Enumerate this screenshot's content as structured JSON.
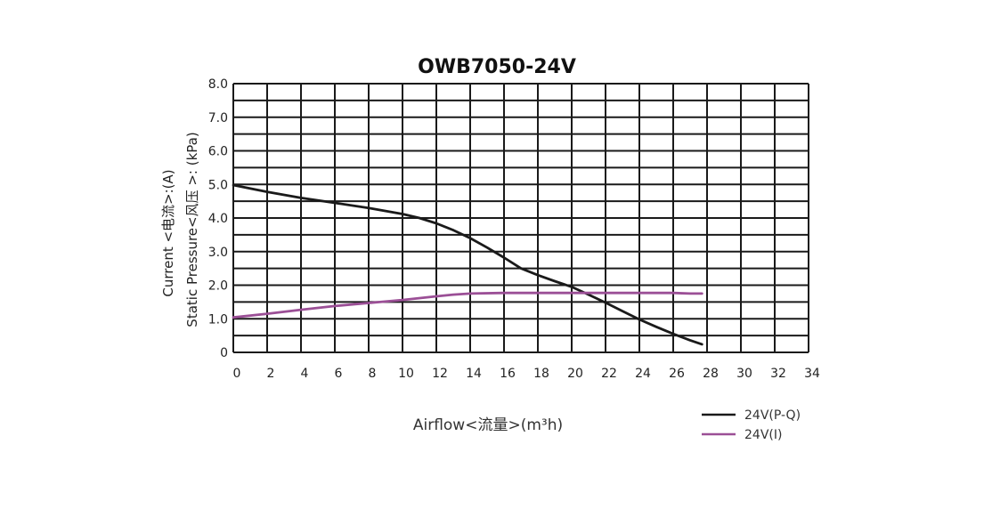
{
  "chart_data": {
    "type": "line",
    "title": "OWB7050-24V",
    "xlabel": "Airflow<流量>(m³h)",
    "ylabel_lines": [
      "Current  <电流>:(A)",
      "Static Pressure<风压 >: (kPa)"
    ],
    "xlim": [
      0,
      34
    ],
    "ylim": [
      0,
      8
    ],
    "x_ticks": [
      {
        "v": 0,
        "label": "0"
      },
      {
        "v": 2,
        "label": "2"
      },
      {
        "v": 4,
        "label": "4"
      },
      {
        "v": 6,
        "label": "6"
      },
      {
        "v": 8,
        "label": "8"
      },
      {
        "v": 10,
        "label": "10"
      },
      {
        "v": 12,
        "label": "12"
      },
      {
        "v": 14,
        "label": "14"
      },
      {
        "v": 16,
        "label": "16"
      },
      {
        "v": 18,
        "label": "18"
      },
      {
        "v": 20,
        "label": "20"
      },
      {
        "v": 22,
        "label": "22"
      },
      {
        "v": 24,
        "label": "24"
      },
      {
        "v": 26,
        "label": "26"
      },
      {
        "v": 28,
        "label": "28"
      },
      {
        "v": 30,
        "label": "30"
      },
      {
        "v": 32,
        "label": "32"
      },
      {
        "v": 34,
        "label": "34"
      }
    ],
    "y_ticks": [
      {
        "v": 0,
        "label": "0"
      },
      {
        "v": 1,
        "label": "1.0"
      },
      {
        "v": 2,
        "label": "2.0"
      },
      {
        "v": 3,
        "label": "3.0"
      },
      {
        "v": 4,
        "label": "4.0"
      },
      {
        "v": 5,
        "label": "5.0"
      },
      {
        "v": 6,
        "label": "6.0"
      },
      {
        "v": 7,
        "label": "7.0"
      },
      {
        "v": 8,
        "label": "8.0"
      }
    ],
    "grid": true,
    "grid_step": {
      "x": 2,
      "y": 0.5
    },
    "legend_position": "bottom-right",
    "series": [
      {
        "name": "24V(P-Q)",
        "color": "#1a1a1a",
        "x": [
          0,
          2,
          4,
          6,
          8,
          10,
          11,
          12,
          13,
          14,
          15,
          16,
          17,
          18,
          19,
          20,
          21,
          22,
          23,
          24,
          25,
          26,
          27,
          27.7
        ],
        "y": [
          4.98,
          4.78,
          4.6,
          4.45,
          4.3,
          4.12,
          4.0,
          3.84,
          3.64,
          3.4,
          3.12,
          2.82,
          2.5,
          2.3,
          2.12,
          1.95,
          1.72,
          1.48,
          1.23,
          0.98,
          0.76,
          0.55,
          0.36,
          0.24
        ]
      },
      {
        "name": "24V(I)",
        "color": "#9b4f96",
        "x": [
          0,
          2,
          4,
          6,
          8,
          10,
          12,
          13,
          14,
          16,
          18,
          20,
          22,
          24,
          26,
          27,
          27.7
        ],
        "y": [
          1.04,
          1.15,
          1.27,
          1.38,
          1.47,
          1.56,
          1.67,
          1.72,
          1.75,
          1.77,
          1.77,
          1.77,
          1.77,
          1.77,
          1.77,
          1.75,
          1.75
        ]
      }
    ]
  }
}
